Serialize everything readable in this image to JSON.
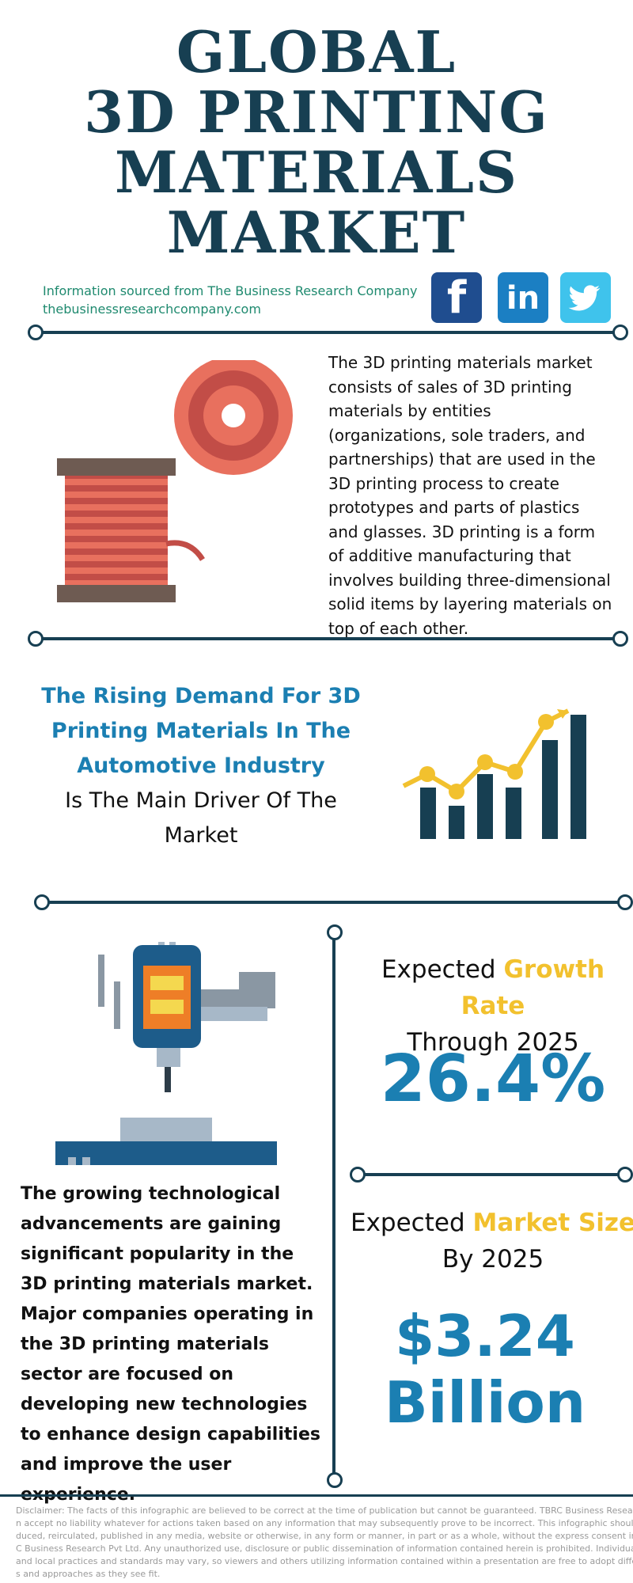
{
  "title": {
    "line1": "GLOBAL",
    "line2": "3D PRINTING",
    "line3": "MATERIALS",
    "line4": "MARKET"
  },
  "source": {
    "line1": "Information sourced from The Business Research Company",
    "line2": "thebusinessresearchcompany.com"
  },
  "social": {
    "facebook": "f",
    "linkedin": "in",
    "twitter": "twitter-icon"
  },
  "description": "The 3D printing materials market consists of sales of 3D printing materials by entities (organizations, sole traders, and partnerships) that are used in the 3D printing process to create prototypes and parts of plastics and glasses. 3D printing is a form of additive manufacturing that involves building three-dimensional solid items by layering materials on top of each other.",
  "driver": {
    "highlight": "The Rising Demand For 3D Printing Materials In The Automotive Industry",
    "rest": "Is The Main Driver Of The Market"
  },
  "growth": {
    "prefix": "Expected ",
    "highlight": "Growth Rate",
    "suffix": "Through 2025",
    "value": "26.4%"
  },
  "market_size": {
    "prefix": "Expected ",
    "highlight": "Market Size",
    "suffix": "By 2025",
    "value_line1": "$3.24",
    "value_line2": "Billion"
  },
  "advancements": "The growing technological advancements are gaining significant popularity in the 3D printing materials market. Major companies operating in the 3D printing materials sector are focused on developing new technologies to enhance design capabilities and improve the user experience.",
  "disclaimer": [
    "Disclaimer: The facts of this infographic are believed to be correct at the time of publication but cannot be guaranteed. TBRC Business Research Pvt Ltd c",
    "n accept no liability whatever for actions taken based on any information that may subsequently prove to be incorrect. This infographic should not be repr",
    "duced, reirculated, published in any media, website or otherwise, in any form or manner, in part or as a whole, without the express consent in writing of TB",
    "C Business Research Pvt Ltd. Any unauthorized use, disclosure or public dissemination of information contained herein is prohibited. Individual situations",
    "and local practices and standards may vary, so viewers and others utilizing information contained within a presentation are free to adopt differing standar",
    "s and approaches as they see fit."
  ],
  "colors": {
    "navy": "#173f52",
    "blue": "#1b7fb2",
    "yellow": "#f2c12e",
    "green": "#1f8a6f"
  }
}
